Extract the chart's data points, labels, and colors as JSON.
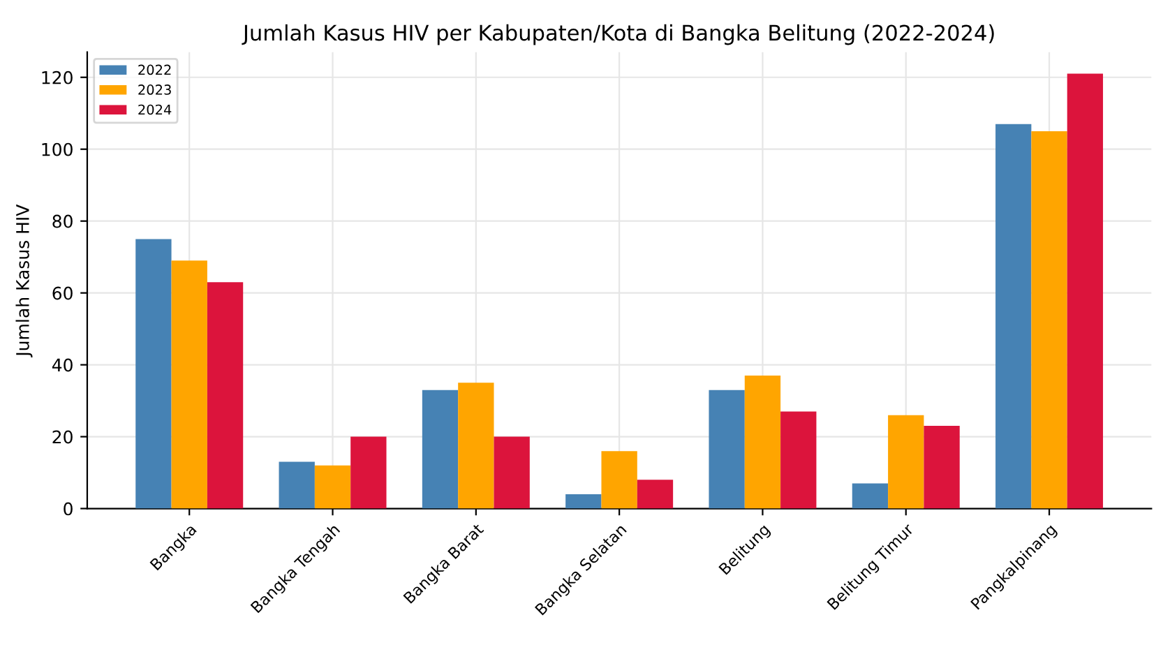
{
  "chart_data": {
    "type": "bar",
    "title": "Jumlah Kasus HIV per Kabupaten/Kota di Bangka Belitung (2022-2024)",
    "ylabel": "Jumlah Kasus HIV",
    "categories": [
      "Bangka",
      "Bangka Tengah",
      "Bangka Barat",
      "Bangka Selatan",
      "Belitung",
      "Belitung Timur",
      "Pangkalpinang"
    ],
    "series": [
      {
        "name": "2022",
        "color": "#4682b4",
        "values": [
          75,
          13,
          33,
          4,
          33,
          7,
          107
        ]
      },
      {
        "name": "2023",
        "color": "#ffa500",
        "values": [
          69,
          12,
          35,
          16,
          37,
          26,
          105
        ]
      },
      {
        "name": "2024",
        "color": "#dc143c",
        "values": [
          63,
          20,
          20,
          8,
          27,
          23,
          121
        ]
      }
    ],
    "ylim": [
      0,
      127
    ],
    "yticks": [
      0,
      20,
      40,
      60,
      80,
      100,
      120
    ],
    "grid": true,
    "legend": "top left"
  }
}
